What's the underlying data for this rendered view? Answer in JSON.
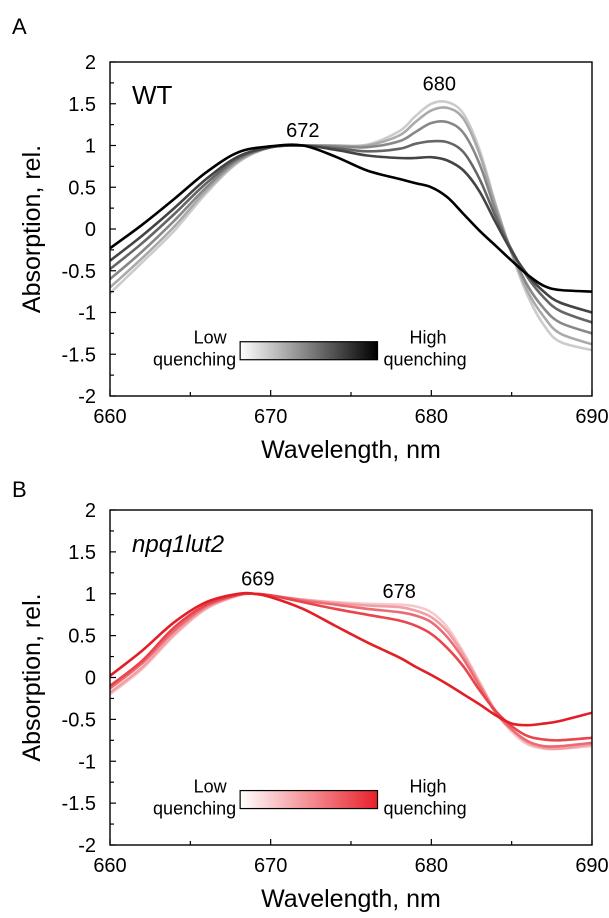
{
  "chart_data": [
    {
      "type": "line",
      "panel_letter": "A",
      "panel_label": "WT",
      "xlabel": "Wavelength, nm",
      "ylabel": "Absorption, rel.",
      "xlim": [
        660,
        690
      ],
      "ylim": [
        -2,
        2
      ],
      "x_ticks": [
        660,
        670,
        680,
        690
      ],
      "y_ticks": [
        -2,
        -1.5,
        -1,
        -0.5,
        0,
        0.5,
        1,
        1.5,
        2
      ],
      "y_tick_labels": [
        "-2",
        "-1.5",
        "-1",
        "-0.5",
        "0",
        "0.5",
        "1",
        "1.5",
        "2"
      ],
      "grid": false,
      "annotations": [
        {
          "text": "672",
          "x": 672,
          "y": 1.1
        },
        {
          "text": "680",
          "x": 680.5,
          "y": 1.66
        }
      ],
      "colorbar": {
        "low_label": [
          "Low",
          "quenching"
        ],
        "high_label": [
          "High",
          "quenching"
        ],
        "low_color": "#ffffff",
        "high_color": "#000000"
      },
      "x": [
        660,
        662,
        664,
        666,
        668,
        670,
        672,
        674,
        676,
        678,
        679,
        680,
        681,
        682,
        683,
        684,
        685,
        686,
        687,
        688,
        690
      ],
      "series": [
        {
          "color": "#cccccc",
          "values": [
            -0.77,
            -0.4,
            -0.02,
            0.43,
            0.8,
            0.98,
            1.0,
            1.0,
            1.01,
            1.17,
            1.35,
            1.5,
            1.52,
            1.38,
            0.95,
            0.3,
            -0.3,
            -0.8,
            -1.15,
            -1.35,
            -1.45
          ]
        },
        {
          "color": "#aaaaaa",
          "values": [
            -0.7,
            -0.35,
            0.03,
            0.46,
            0.81,
            0.98,
            1.0,
            1.0,
            1.0,
            1.12,
            1.28,
            1.42,
            1.45,
            1.32,
            0.9,
            0.28,
            -0.28,
            -0.75,
            -1.05,
            -1.25,
            -1.38
          ]
        },
        {
          "color": "#888888",
          "values": [
            -0.6,
            -0.27,
            0.1,
            0.5,
            0.83,
            0.98,
            1.0,
            0.99,
            0.98,
            1.05,
            1.16,
            1.27,
            1.28,
            1.15,
            0.78,
            0.22,
            -0.28,
            -0.68,
            -0.95,
            -1.12,
            -1.25
          ]
        },
        {
          "color": "#666666",
          "values": [
            -0.48,
            -0.17,
            0.18,
            0.55,
            0.85,
            0.98,
            1.0,
            0.97,
            0.93,
            0.96,
            1.02,
            1.05,
            1.04,
            0.92,
            0.6,
            0.15,
            -0.25,
            -0.58,
            -0.82,
            -0.98,
            -1.12
          ]
        },
        {
          "color": "#444444",
          "values": [
            -0.38,
            -0.08,
            0.25,
            0.6,
            0.87,
            0.98,
            1.0,
            0.95,
            0.88,
            0.85,
            0.85,
            0.86,
            0.82,
            0.7,
            0.45,
            0.08,
            -0.27,
            -0.55,
            -0.75,
            -0.88,
            -1.0
          ]
        },
        {
          "color": "#000000",
          "values": [
            -0.23,
            0.05,
            0.36,
            0.68,
            0.92,
            0.99,
            1.0,
            0.87,
            0.7,
            0.6,
            0.55,
            0.5,
            0.38,
            0.18,
            -0.02,
            -0.2,
            -0.38,
            -0.55,
            -0.68,
            -0.73,
            -0.75
          ]
        }
      ]
    },
    {
      "type": "line",
      "panel_letter": "B",
      "panel_label": "npq1lut2",
      "xlabel": "Wavelength, nm",
      "ylabel": "Absorption, rel.",
      "xlim": [
        660,
        690
      ],
      "ylim": [
        -2,
        2
      ],
      "x_ticks": [
        660,
        670,
        680,
        690
      ],
      "y_ticks": [
        -2,
        -1.5,
        -1,
        -0.5,
        0,
        0.5,
        1,
        1.5,
        2
      ],
      "y_tick_labels": [
        "-2",
        "-1.5",
        "-1",
        "-0.5",
        "0",
        "0.5",
        "1",
        "1.5",
        "2"
      ],
      "grid": false,
      "annotations": [
        {
          "text": "669",
          "x": 669.2,
          "y": 1.1
        },
        {
          "text": "678",
          "x": 678,
          "y": 0.95
        }
      ],
      "colorbar": {
        "low_label": [
          "Low",
          "quenching"
        ],
        "high_label": [
          "High",
          "quenching"
        ],
        "low_color": "#ffffff",
        "high_color": "#e8202a"
      },
      "x": [
        660,
        662,
        664,
        666,
        668,
        669,
        670,
        672,
        674,
        676,
        678,
        679,
        680,
        681,
        682,
        683,
        684,
        685,
        686,
        687,
        688,
        690
      ],
      "series": [
        {
          "color": "#f6c9cc",
          "values": [
            -0.2,
            0.1,
            0.5,
            0.82,
            0.98,
            1.0,
            0.98,
            0.93,
            0.9,
            0.88,
            0.87,
            0.85,
            0.78,
            0.6,
            0.3,
            -0.05,
            -0.4,
            -0.65,
            -0.8,
            -0.85,
            -0.85,
            -0.82
          ]
        },
        {
          "color": "#f29ea3",
          "values": [
            -0.18,
            0.12,
            0.52,
            0.83,
            0.98,
            1.0,
            0.98,
            0.93,
            0.89,
            0.86,
            0.84,
            0.8,
            0.72,
            0.55,
            0.27,
            -0.07,
            -0.4,
            -0.62,
            -0.78,
            -0.84,
            -0.85,
            -0.8
          ]
        },
        {
          "color": "#ec6b73",
          "values": [
            -0.13,
            0.17,
            0.56,
            0.85,
            0.99,
            1.0,
            0.98,
            0.92,
            0.87,
            0.82,
            0.78,
            0.74,
            0.66,
            0.48,
            0.22,
            -0.1,
            -0.42,
            -0.62,
            -0.76,
            -0.82,
            -0.82,
            -0.78
          ]
        },
        {
          "color": "#e8454d",
          "values": [
            -0.1,
            0.2,
            0.6,
            0.87,
            0.99,
            1.0,
            0.98,
            0.9,
            0.82,
            0.75,
            0.68,
            0.62,
            0.52,
            0.35,
            0.13,
            -0.15,
            -0.4,
            -0.58,
            -0.7,
            -0.74,
            -0.75,
            -0.72
          ]
        },
        {
          "color": "#e21f27",
          "values": [
            0.02,
            0.32,
            0.66,
            0.9,
            1.0,
            1.0,
            0.96,
            0.82,
            0.62,
            0.42,
            0.24,
            0.13,
            0.03,
            -0.08,
            -0.2,
            -0.32,
            -0.45,
            -0.55,
            -0.57,
            -0.55,
            -0.52,
            -0.42
          ]
        }
      ]
    }
  ]
}
